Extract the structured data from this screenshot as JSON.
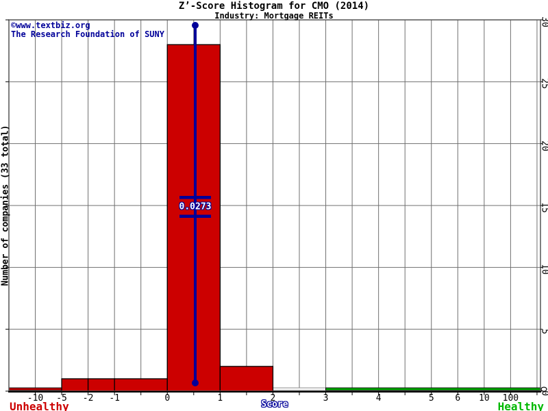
{
  "watermark": {
    "line1": "©www.textbiz.org",
    "line2": "The Research Foundation of SUNY"
  },
  "zone_labels": {
    "left": "Unhealthy",
    "right": "Healthy"
  },
  "colors": {
    "bar": "#cc0000",
    "marker": "#000099",
    "healthy": "#00b800",
    "unhealthy": "#cc0000",
    "grid": "#6f6f6f",
    "border": "#545454",
    "axis": "#000000"
  },
  "chart_data": {
    "type": "bar",
    "title": "Z’-Score Histogram for CMO (2014)",
    "subtitle": "Industry: Mortgage REITs",
    "xlabel": "Score",
    "ylabel": "Number of companies (33 total)",
    "total_companies": 33,
    "ylim": [
      0,
      30
    ],
    "y_ticks": [
      0,
      5,
      10,
      15,
      20,
      25,
      30
    ],
    "x_tick_labels": [
      "-10",
      "-5",
      "-2",
      "-1",
      "0",
      "1",
      "2",
      "3",
      "4",
      "5",
      "6",
      "10",
      "100"
    ],
    "grid": true,
    "bins": [
      {
        "from": "-5",
        "to": "-2",
        "count": 1
      },
      {
        "from": "-2",
        "to": "-1",
        "count": 1
      },
      {
        "from": "-1",
        "to": "0",
        "count": 1
      },
      {
        "from": "0",
        "to": "1",
        "count": 28
      },
      {
        "from": "1",
        "to": "2",
        "count": 2
      }
    ],
    "marker": {
      "value": 0.0273,
      "label": "0.0273",
      "x": 0.5
    },
    "zones": {
      "unhealthy_end_x": 2,
      "healthy_start_x": 3
    }
  }
}
